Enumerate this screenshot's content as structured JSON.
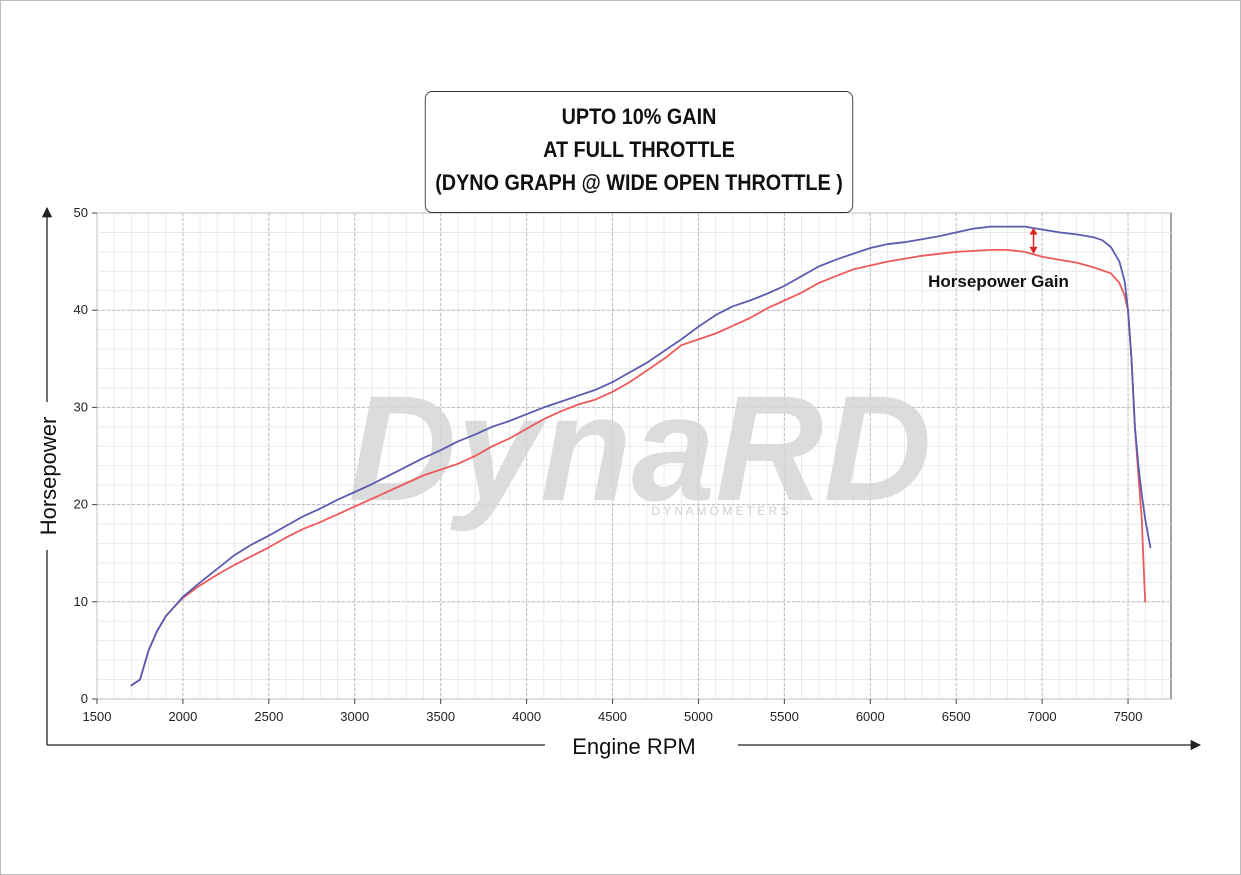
{
  "title": {
    "line1": "UPTO 10% GAIN",
    "line2": "AT FULL THROTTLE",
    "line3": "(DYNO GRAPH @ WIDE OPEN THROTTLE )"
  },
  "watermark": {
    "brand": "DynaRD",
    "sub": "D Y N A M O M E T E R S"
  },
  "colors": {
    "tuned": "#5b5bb0",
    "stock": "#ee5a5a",
    "gain_arrow": "#dd2222"
  },
  "chart_data": {
    "type": "line",
    "title": "UPTO 10% GAIN AT FULL THROTTLE (DYNO GRAPH @ WIDE OPEN THROTTLE )",
    "xlabel": "Engine RPM",
    "ylabel": "Horsepower",
    "xlim": [
      1500,
      7750
    ],
    "ylim": [
      0,
      50
    ],
    "x_ticks": [
      1500,
      2000,
      2500,
      3000,
      3500,
      4000,
      4500,
      5000,
      5500,
      6000,
      6500,
      7000,
      7500
    ],
    "y_ticks": [
      0,
      10,
      20,
      30,
      40,
      50
    ],
    "grid": true,
    "annotations": [
      {
        "text": "Horsepower Gain",
        "x": 6950,
        "y": 43
      }
    ],
    "gain_marker": {
      "x": 6950,
      "y_from": 45.8,
      "y_to": 48.5
    },
    "series": [
      {
        "color": "#5b5bb0",
        "points": [
          [
            1700,
            1.4
          ],
          [
            1750,
            2.0
          ],
          [
            1800,
            5.0
          ],
          [
            1850,
            7.0
          ],
          [
            1900,
            8.5
          ],
          [
            1950,
            9.5
          ],
          [
            2000,
            10.5
          ],
          [
            2100,
            12.0
          ],
          [
            2200,
            13.4
          ],
          [
            2300,
            14.8
          ],
          [
            2400,
            15.9
          ],
          [
            2500,
            16.8
          ],
          [
            2600,
            17.8
          ],
          [
            2700,
            18.8
          ],
          [
            2800,
            19.6
          ],
          [
            2900,
            20.5
          ],
          [
            3000,
            21.3
          ],
          [
            3100,
            22.1
          ],
          [
            3200,
            23.0
          ],
          [
            3300,
            23.9
          ],
          [
            3400,
            24.8
          ],
          [
            3500,
            25.6
          ],
          [
            3600,
            26.5
          ],
          [
            3700,
            27.2
          ],
          [
            3800,
            28.0
          ],
          [
            3900,
            28.6
          ],
          [
            4000,
            29.3
          ],
          [
            4100,
            30.0
          ],
          [
            4200,
            30.6
          ],
          [
            4300,
            31.2
          ],
          [
            4400,
            31.8
          ],
          [
            4500,
            32.6
          ],
          [
            4600,
            33.6
          ],
          [
            4700,
            34.6
          ],
          [
            4800,
            35.8
          ],
          [
            4900,
            37.0
          ],
          [
            5000,
            38.3
          ],
          [
            5100,
            39.5
          ],
          [
            5200,
            40.4
          ],
          [
            5300,
            41.0
          ],
          [
            5400,
            41.7
          ],
          [
            5500,
            42.5
          ],
          [
            5600,
            43.5
          ],
          [
            5700,
            44.5
          ],
          [
            5800,
            45.2
          ],
          [
            5900,
            45.8
          ],
          [
            6000,
            46.4
          ],
          [
            6100,
            46.8
          ],
          [
            6200,
            47.0
          ],
          [
            6300,
            47.3
          ],
          [
            6400,
            47.6
          ],
          [
            6500,
            48.0
          ],
          [
            6600,
            48.4
          ],
          [
            6700,
            48.6
          ],
          [
            6800,
            48.6
          ],
          [
            6900,
            48.6
          ],
          [
            7000,
            48.3
          ],
          [
            7100,
            48.0
          ],
          [
            7200,
            47.8
          ],
          [
            7300,
            47.5
          ],
          [
            7350,
            47.2
          ],
          [
            7400,
            46.5
          ],
          [
            7450,
            45.0
          ],
          [
            7480,
            43.0
          ],
          [
            7500,
            40.0
          ],
          [
            7520,
            35.0
          ],
          [
            7540,
            28.0
          ],
          [
            7560,
            24.0
          ],
          [
            7580,
            21.0
          ],
          [
            7600,
            18.5
          ],
          [
            7630,
            15.6
          ]
        ]
      },
      {
        "color": "#ee5a5a",
        "points": [
          [
            1700,
            1.4
          ],
          [
            1750,
            2.0
          ],
          [
            1800,
            5.0
          ],
          [
            1850,
            7.0
          ],
          [
            1900,
            8.5
          ],
          [
            1950,
            9.5
          ],
          [
            2000,
            10.4
          ],
          [
            2100,
            11.7
          ],
          [
            2200,
            12.8
          ],
          [
            2300,
            13.8
          ],
          [
            2400,
            14.7
          ],
          [
            2500,
            15.6
          ],
          [
            2600,
            16.6
          ],
          [
            2700,
            17.5
          ],
          [
            2800,
            18.2
          ],
          [
            2900,
            19.0
          ],
          [
            3000,
            19.8
          ],
          [
            3100,
            20.6
          ],
          [
            3200,
            21.4
          ],
          [
            3300,
            22.2
          ],
          [
            3400,
            23.0
          ],
          [
            3500,
            23.6
          ],
          [
            3600,
            24.2
          ],
          [
            3700,
            25.0
          ],
          [
            3800,
            26.0
          ],
          [
            3900,
            26.8
          ],
          [
            4000,
            27.8
          ],
          [
            4100,
            28.8
          ],
          [
            4200,
            29.6
          ],
          [
            4300,
            30.3
          ],
          [
            4400,
            30.8
          ],
          [
            4500,
            31.6
          ],
          [
            4600,
            32.6
          ],
          [
            4700,
            33.8
          ],
          [
            4800,
            35.0
          ],
          [
            4900,
            36.4
          ],
          [
            5000,
            37.0
          ],
          [
            5100,
            37.6
          ],
          [
            5200,
            38.4
          ],
          [
            5300,
            39.2
          ],
          [
            5400,
            40.2
          ],
          [
            5500,
            41.0
          ],
          [
            5600,
            41.8
          ],
          [
            5700,
            42.8
          ],
          [
            5800,
            43.5
          ],
          [
            5900,
            44.2
          ],
          [
            6000,
            44.6
          ],
          [
            6100,
            45.0
          ],
          [
            6200,
            45.3
          ],
          [
            6300,
            45.6
          ],
          [
            6400,
            45.8
          ],
          [
            6500,
            46.0
          ],
          [
            6600,
            46.1
          ],
          [
            6700,
            46.2
          ],
          [
            6800,
            46.2
          ],
          [
            6900,
            46.0
          ],
          [
            7000,
            45.5
          ],
          [
            7100,
            45.2
          ],
          [
            7200,
            44.9
          ],
          [
            7300,
            44.4
          ],
          [
            7400,
            43.8
          ],
          [
            7450,
            42.8
          ],
          [
            7480,
            41.5
          ],
          [
            7500,
            40.0
          ],
          [
            7520,
            35.0
          ],
          [
            7540,
            28.0
          ],
          [
            7560,
            23.0
          ],
          [
            7580,
            18.5
          ],
          [
            7590,
            14.0
          ],
          [
            7600,
            10.0
          ]
        ]
      }
    ]
  }
}
